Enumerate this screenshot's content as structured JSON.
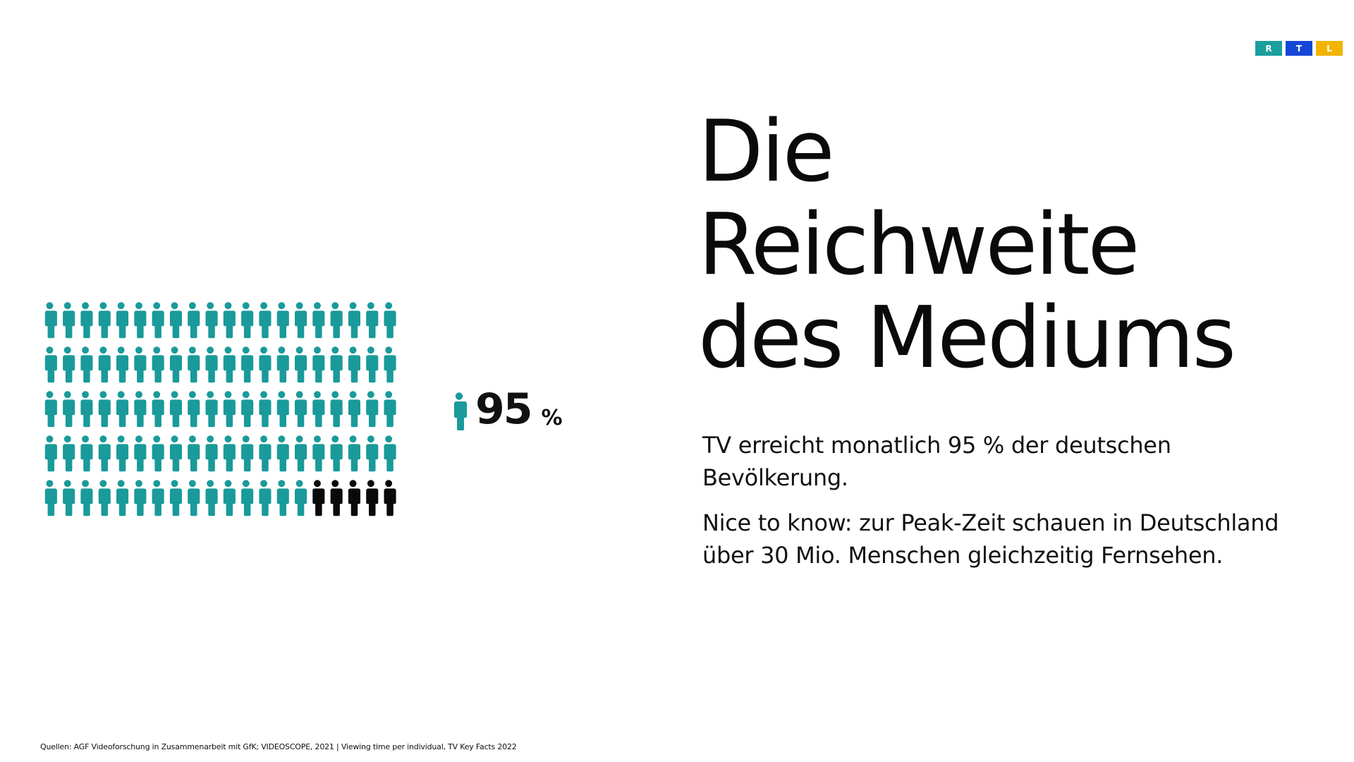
{
  "logo": {
    "letters": [
      "R",
      "T",
      "L"
    ],
    "colors": [
      "#1a9e9e",
      "#1547d6",
      "#f2b400"
    ]
  },
  "title": {
    "line1": "Die",
    "line2": "Reichweite",
    "line3": "des Mediums"
  },
  "body": {
    "paragraph1": "TV erreicht monatlich 95 % der deutschen Bevölkerung.",
    "paragraph2": "Nice to know: zur Peak-Zeit schauen in Deutschland über 30 Mio. Menschen gleichzeitig Fernsehen."
  },
  "pictogram": {
    "rows": 5,
    "columns": 20,
    "highlighted_count": 95,
    "total_count": 100,
    "highlight_color": "#1a9a9a",
    "rest_color": "#0a0a0a",
    "icon": "person-icon"
  },
  "legend": {
    "icon": "person-icon",
    "value": "95",
    "unit": "%"
  },
  "footer": {
    "sources": "Quellen: AGF Videoforschung in Zusammenarbeit mit GfK; VIDEOSCOPE, 2021 | Viewing time per individual, TV Key Facts 2022"
  }
}
